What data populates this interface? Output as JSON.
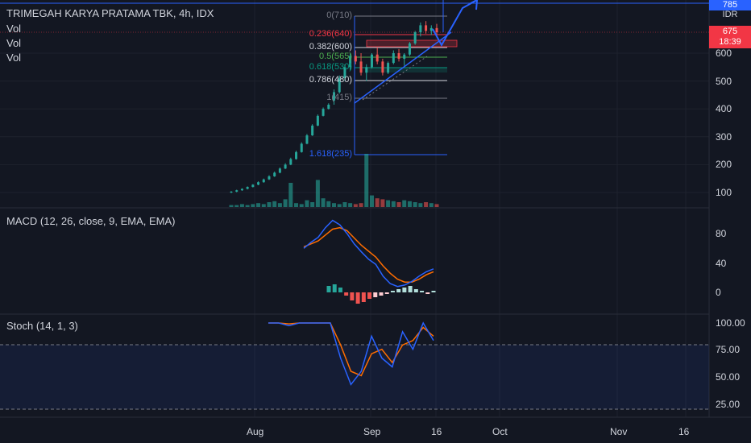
{
  "header": {
    "symbol": "TRIMEGAH KARYA PRATAMA TBK",
    "interval": "4h",
    "exchange": "IDX",
    "vol_labels": [
      "Vol",
      "Vol",
      "Vol"
    ]
  },
  "price_axis": {
    "currency": "IDR",
    "ticks": [
      "100",
      "200",
      "300",
      "400",
      "500",
      "600"
    ],
    "top_tag": "785",
    "last_price": "675",
    "countdown": "18:39"
  },
  "fib_levels": [
    {
      "label": "0(710)",
      "value": 710,
      "color": "#787b86"
    },
    {
      "label": "0.236(640)",
      "value": 640,
      "color": "#f23645"
    },
    {
      "label": "0.382(600)",
      "value": 600,
      "color": "#d1d4dc"
    },
    {
      "label": "0.5(565)",
      "value": 565,
      "color": "#4caf50"
    },
    {
      "label": "0.618(530)",
      "value": 530,
      "color": "#089981"
    },
    {
      "label": "0.786(480)",
      "value": 480,
      "color": "#d1d4dc"
    },
    {
      "label": "1(415)",
      "value": 415,
      "color": "#787b86"
    },
    {
      "label": "1.618(235)",
      "value": 235,
      "color": "#2962ff"
    }
  ],
  "macd": {
    "title": "MACD (12, 26, close, 9, EMA, EMA)",
    "ticks": [
      "80",
      "40",
      "0"
    ]
  },
  "stoch": {
    "title": "Stoch (14, 1, 3)",
    "ticks": [
      "100.00",
      "75.00",
      "50.00",
      "25.00"
    ],
    "upper_band": 80,
    "lower_band": 20
  },
  "time_axis": {
    "labels": [
      "Aug",
      "Sep",
      "16",
      "Oct",
      "Nov",
      "16"
    ]
  },
  "chart_data": {
    "type": "candlestick",
    "price_candles": [
      {
        "o": 100,
        "h": 105,
        "l": 98,
        "c": 103
      },
      {
        "o": 103,
        "h": 110,
        "l": 101,
        "c": 108
      },
      {
        "o": 108,
        "h": 115,
        "l": 106,
        "c": 113
      },
      {
        "o": 113,
        "h": 122,
        "l": 111,
        "c": 120
      },
      {
        "o": 120,
        "h": 130,
        "l": 118,
        "c": 128
      },
      {
        "o": 128,
        "h": 140,
        "l": 126,
        "c": 137
      },
      {
        "o": 137,
        "h": 150,
        "l": 135,
        "c": 147
      },
      {
        "o": 147,
        "h": 162,
        "l": 145,
        "c": 158
      },
      {
        "o": 158,
        "h": 175,
        "l": 156,
        "c": 171
      },
      {
        "o": 171,
        "h": 190,
        "l": 169,
        "c": 186
      },
      {
        "o": 186,
        "h": 205,
        "l": 184,
        "c": 200
      },
      {
        "o": 200,
        "h": 225,
        "l": 198,
        "c": 220
      },
      {
        "o": 220,
        "h": 250,
        "l": 218,
        "c": 245
      },
      {
        "o": 245,
        "h": 280,
        "l": 243,
        "c": 275
      },
      {
        "o": 275,
        "h": 310,
        "l": 273,
        "c": 305
      },
      {
        "o": 305,
        "h": 345,
        "l": 303,
        "c": 340
      },
      {
        "o": 340,
        "h": 380,
        "l": 338,
        "c": 375
      },
      {
        "o": 375,
        "h": 405,
        "l": 373,
        "c": 400
      },
      {
        "o": 400,
        "h": 420,
        "l": 398,
        "c": 415
      },
      {
        "o": 430,
        "h": 470,
        "l": 415,
        "c": 460
      },
      {
        "o": 460,
        "h": 520,
        "l": 455,
        "c": 510
      },
      {
        "o": 510,
        "h": 560,
        "l": 500,
        "c": 550
      },
      {
        "o": 550,
        "h": 600,
        "l": 540,
        "c": 590
      },
      {
        "o": 590,
        "h": 610,
        "l": 560,
        "c": 570
      },
      {
        "o": 570,
        "h": 600,
        "l": 520,
        "c": 530
      },
      {
        "o": 530,
        "h": 560,
        "l": 500,
        "c": 550
      },
      {
        "o": 550,
        "h": 600,
        "l": 545,
        "c": 595
      },
      {
        "o": 595,
        "h": 620,
        "l": 560,
        "c": 570
      },
      {
        "o": 570,
        "h": 580,
        "l": 520,
        "c": 530
      },
      {
        "o": 530,
        "h": 570,
        "l": 525,
        "c": 565
      },
      {
        "o": 565,
        "h": 610,
        "l": 560,
        "c": 600
      },
      {
        "o": 600,
        "h": 615,
        "l": 570,
        "c": 580
      },
      {
        "o": 580,
        "h": 600,
        "l": 555,
        "c": 595
      },
      {
        "o": 595,
        "h": 640,
        "l": 590,
        "c": 635
      },
      {
        "o": 635,
        "h": 680,
        "l": 630,
        "c": 675
      },
      {
        "o": 675,
        "h": 710,
        "l": 660,
        "c": 700
      },
      {
        "o": 700,
        "h": 715,
        "l": 670,
        "c": 680
      },
      {
        "o": 680,
        "h": 700,
        "l": 665,
        "c": 690
      },
      {
        "o": 690,
        "h": 705,
        "l": 665,
        "c": 675
      }
    ],
    "volume": [
      2,
      2,
      3,
      2,
      3,
      4,
      3,
      5,
      6,
      4,
      8,
      25,
      4,
      3,
      7,
      5,
      28,
      9,
      6,
      4,
      3,
      5,
      4,
      3,
      4,
      55,
      12,
      9,
      8,
      7,
      6,
      5,
      7,
      6,
      5,
      4,
      5,
      4,
      3
    ],
    "macd_line": [
      60,
      68,
      75,
      88,
      98,
      92,
      80,
      66,
      55,
      45,
      38,
      22,
      12,
      8,
      10,
      15,
      22,
      28,
      32
    ],
    "signal_line": [
      62,
      66,
      70,
      78,
      86,
      88,
      84,
      74,
      64,
      56,
      48,
      36,
      26,
      18,
      14,
      14,
      18,
      24,
      28
    ],
    "macd_hist": [
      8,
      10,
      6,
      -4,
      -10,
      -14,
      -12,
      -8,
      -6,
      -4,
      -2,
      2,
      4,
      6,
      8,
      4,
      2,
      -2,
      2
    ],
    "stoch_k": [
      100,
      100,
      97,
      100,
      100,
      100,
      100,
      60,
      30,
      45,
      85,
      60,
      50,
      90,
      70,
      100,
      80
    ],
    "stoch_d": [
      100,
      100,
      99,
      100,
      100,
      100,
      100,
      75,
      45,
      40,
      65,
      70,
      55,
      75,
      80,
      95,
      85
    ],
    "price_range": [
      60,
      790
    ],
    "macd_range": [
      -20,
      110
    ],
    "stoch_range": [
      0,
      110
    ]
  }
}
